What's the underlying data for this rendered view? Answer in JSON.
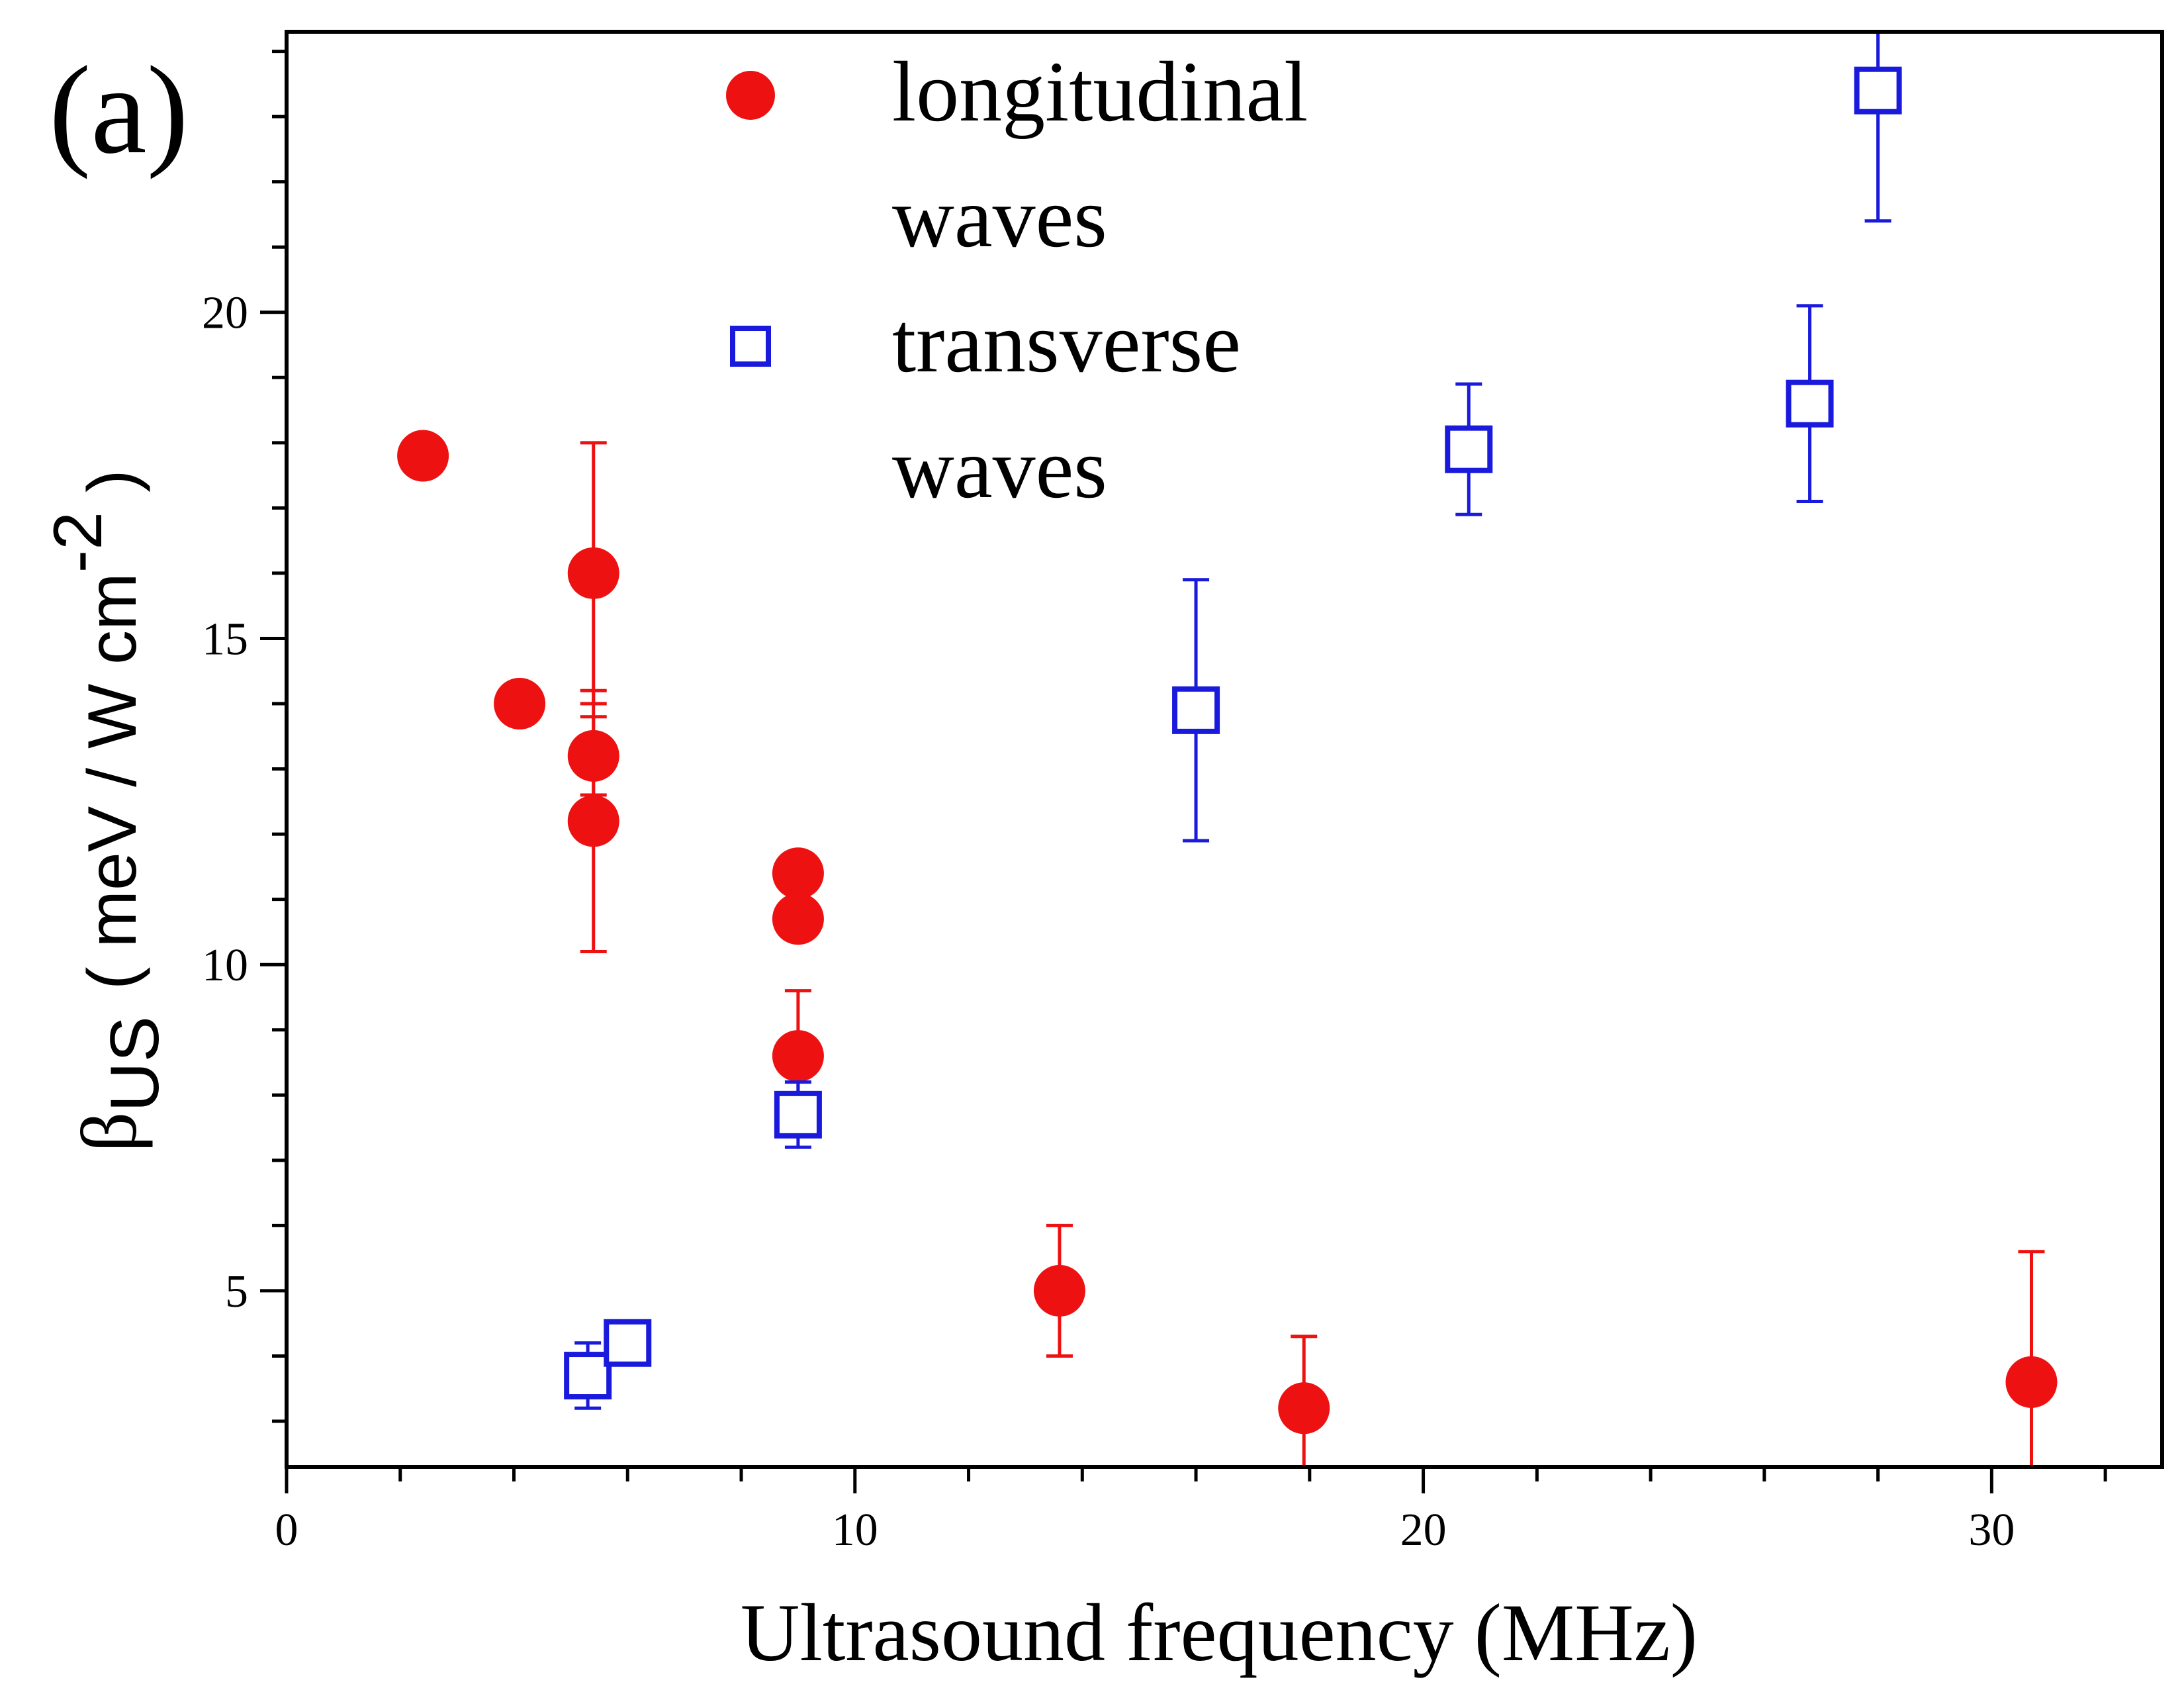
{
  "chart_data": {
    "type": "scatter",
    "panel_label": "(a)",
    "xlabel": "Ultrasound frequency (MHz)",
    "ylabel": {
      "symbol": "β",
      "subscript": "US",
      "open": "( meV / W cm",
      "superscript": "-2",
      "close": " )"
    },
    "xlim": [
      0,
      33
    ],
    "ylim": [
      2.3,
      24.3
    ],
    "x_ticks": [
      0,
      10,
      20,
      30
    ],
    "y_ticks": [
      5,
      10,
      15,
      20
    ],
    "x_tick_labels": [
      "0",
      "10",
      "20",
      "30"
    ],
    "y_tick_labels": [
      "5",
      "10",
      "15",
      "20"
    ],
    "x_minor_step": 2,
    "y_minor_step": 1,
    "grid": false,
    "legend_position": "top-center",
    "series": [
      {
        "name_lines": [
          "longitudinal",
          "waves"
        ],
        "marker": "filled-circle",
        "color": "#ee1111",
        "points": [
          {
            "x": 2.4,
            "y": 17.8
          },
          {
            "x": 4.1,
            "y": 14.0
          },
          {
            "x": 5.4,
            "y": 16.0,
            "err_low": 2.0,
            "err_high": 2.0
          },
          {
            "x": 5.4,
            "y": 13.2,
            "err_low": 0.6,
            "err_high": 0.6
          },
          {
            "x": 5.4,
            "y": 12.2,
            "err_low": 2.0,
            "err_high": 2.0
          },
          {
            "x": 9.0,
            "y": 11.4
          },
          {
            "x": 9.0,
            "y": 10.7
          },
          {
            "x": 9.0,
            "y": 8.6,
            "err_low": 1.0,
            "err_high": 1.0
          },
          {
            "x": 13.6,
            "y": 5.0,
            "err_low": 1.0,
            "err_high": 1.0
          },
          {
            "x": 17.9,
            "y": 3.2,
            "err_low": 1.1,
            "err_high": 1.1
          },
          {
            "x": 30.7,
            "y": 3.6,
            "err_low": 2.0,
            "err_high": 2.0
          }
        ]
      },
      {
        "name_lines": [
          "transverse",
          "waves"
        ],
        "marker": "open-square",
        "color": "#1a1add",
        "points": [
          {
            "x": 5.3,
            "y": 3.7,
            "err_low": 0.5,
            "err_high": 0.5
          },
          {
            "x": 6.0,
            "y": 4.2
          },
          {
            "x": 9.0,
            "y": 7.7,
            "err_low": 0.5,
            "err_high": 0.5
          },
          {
            "x": 16.0,
            "y": 13.9,
            "err_low": 2.0,
            "err_high": 2.0
          },
          {
            "x": 20.8,
            "y": 17.9,
            "err_low": 1.0,
            "err_high": 1.0
          },
          {
            "x": 26.8,
            "y": 18.6,
            "err_low": 1.5,
            "err_high": 1.5
          },
          {
            "x": 28.0,
            "y": 23.4,
            "err_low": 2.0,
            "err_high": 2.0
          }
        ]
      }
    ]
  }
}
